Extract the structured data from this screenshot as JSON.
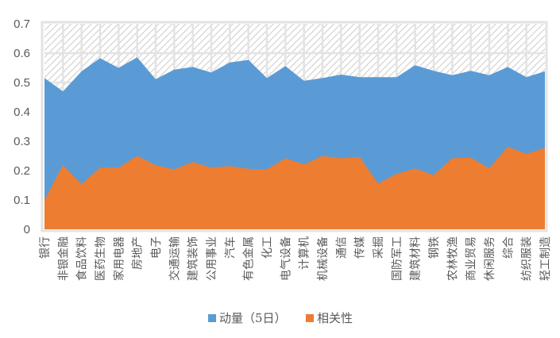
{
  "chart_data": {
    "type": "area",
    "stacked": true,
    "title": "",
    "xlabel": "",
    "ylabel": "",
    "ylim": [
      0,
      0.7
    ],
    "yticks": [
      "0",
      "0.1",
      "0.2",
      "0.3",
      "0.4",
      "0.5",
      "0.6",
      "0.7"
    ],
    "ytick_values": [
      0,
      0.1,
      0.2,
      0.3,
      0.4,
      0.5,
      0.6,
      0.7
    ],
    "legend_position": "bottom",
    "categories": [
      "银行",
      "非银金融",
      "食品饮料",
      "医药生物",
      "家用电器",
      "房地产",
      "电子",
      "交通运输",
      "建筑装饰",
      "公用事业",
      "汽车",
      "有色金属",
      "化工",
      "电气设备",
      "计算机",
      "机械设备",
      "通信",
      "传媒",
      "采掘",
      "国防军工",
      "建筑材料",
      "钢铁",
      "农林牧渔",
      "商业贸易",
      "休闲服务",
      "综合",
      "纺织服装",
      "轻工制造"
    ],
    "series": [
      {
        "name": "相关性",
        "color": "#ED7D31",
        "values": [
          0.1,
          0.218,
          0.154,
          0.21,
          0.21,
          0.25,
          0.218,
          0.204,
          0.229,
          0.21,
          0.215,
          0.206,
          0.204,
          0.242,
          0.221,
          0.25,
          0.242,
          0.247,
          0.156,
          0.189,
          0.207,
          0.185,
          0.242,
          0.244,
          0.208,
          0.281,
          0.257,
          0.277
        ]
      },
      {
        "name": "动量（5日）",
        "color": "#5B9BD5",
        "values": [
          0.415,
          0.252,
          0.384,
          0.373,
          0.34,
          0.336,
          0.293,
          0.34,
          0.324,
          0.324,
          0.353,
          0.371,
          0.311,
          0.314,
          0.285,
          0.265,
          0.285,
          0.271,
          0.362,
          0.329,
          0.352,
          0.355,
          0.283,
          0.296,
          0.317,
          0.272,
          0.261,
          0.261
        ]
      },
      {
        "name": "",
        "fill": "hatch",
        "stack_top": 0.7
      }
    ]
  }
}
